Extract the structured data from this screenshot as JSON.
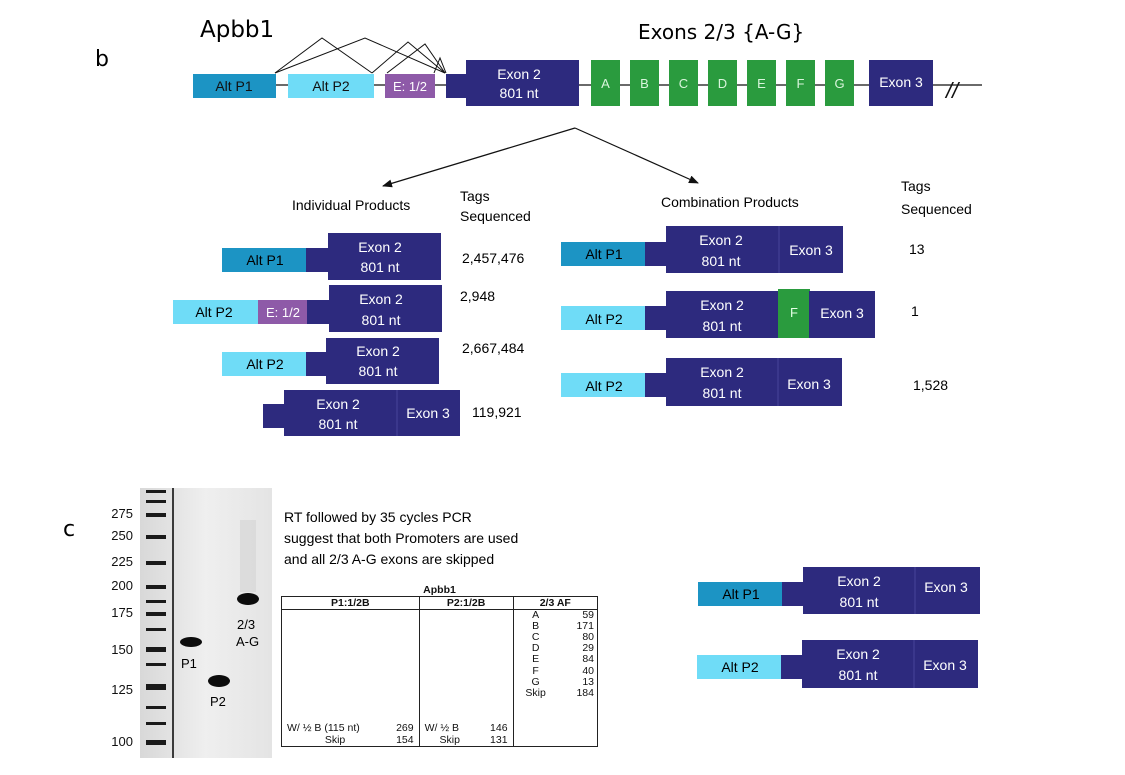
{
  "gene_name": "Apbb1",
  "panel_b": "b",
  "panel_c": "c",
  "exons_title": "Exons 2/3 {A-G}",
  "colors": {
    "alt_p1": "#1c94c4",
    "alt_p2": "#6fdcf7",
    "exon_half": "#8e5aa8",
    "exon_main": "#2d2a7e",
    "exon_af": "#2a9b3e"
  },
  "gene_model": {
    "alt_p1": "Alt P1",
    "alt_p2": "Alt P2",
    "e_half": "E: 1/2",
    "exon2_line1": "Exon 2",
    "exon2_line2": "801 nt",
    "af_exons": [
      "A",
      "B",
      "C",
      "D",
      "E",
      "F",
      "G"
    ],
    "exon3": "Exon 3",
    "break_mark": "//"
  },
  "individual": {
    "heading": "Individual Products",
    "tags_line1": "Tags",
    "tags_line2": "Sequenced",
    "products": [
      {
        "left1": "Alt P1",
        "exon2_l1": "Exon 2",
        "exon2_l2": "801 nt",
        "count": "2,457,476"
      },
      {
        "left1": "Alt P2",
        "left2": "E: 1/2",
        "exon2_l1": "Exon 2",
        "exon2_l2": "801 nt",
        "count": "2,948"
      },
      {
        "left1": "Alt P2",
        "exon2_l1": "Exon 2",
        "exon2_l2": "801 nt",
        "count": "2,667,484"
      },
      {
        "exon2_l1": "Exon 2",
        "exon2_l2": "801 nt",
        "exon3": "Exon 3",
        "count": "119,921"
      }
    ]
  },
  "combination": {
    "heading": "Combination Products",
    "tags_line1": "Tags",
    "tags_line2": "Sequenced",
    "products": [
      {
        "left": "Alt P1",
        "exon2_l1": "Exon 2",
        "exon2_l2": "801 nt",
        "exon3": "Exon 3",
        "count": "13"
      },
      {
        "left": "Alt P2",
        "exon2_l1": "Exon 2",
        "exon2_l2": "801 nt",
        "mid": "F",
        "exon3": "Exon 3",
        "count": "1"
      },
      {
        "left": "Alt P2",
        "exon2_l1": "Exon 2",
        "exon2_l2": "801 nt",
        "exon3": "Exon 3",
        "count": "1,528"
      }
    ]
  },
  "gel": {
    "ladder": [
      "275",
      "250",
      "225",
      "200",
      "175",
      "150",
      "125",
      "100"
    ],
    "lane_p1": "P1",
    "lane_p2": "P2",
    "lane_af_l1": "2/3",
    "lane_af_l2": "A-G"
  },
  "note": {
    "line1": "RT followed by 35 cycles PCR",
    "line2": "suggest that both Promoters are used",
    "line3": "and all 2/3 A-G exons are skipped"
  },
  "table": {
    "title": "Apbb1",
    "headers": [
      "P1:1/2B",
      "P2:1/2B",
      "2/3 AF"
    ],
    "p1": [
      {
        "label": "W/ ½ B (115 nt)",
        "value": "269"
      },
      {
        "label": "Skip",
        "value": "154"
      }
    ],
    "p2": [
      {
        "label": "W/ ½ B",
        "value": "146"
      },
      {
        "label": "Skip",
        "value": "131"
      }
    ],
    "af": [
      {
        "label": "A",
        "value": "59"
      },
      {
        "label": "B",
        "value": "171"
      },
      {
        "label": "C",
        "value": "80"
      },
      {
        "label": "D",
        "value": "29"
      },
      {
        "label": "E",
        "value": "84"
      },
      {
        "label": "F",
        "value": "40"
      },
      {
        "label": "G",
        "value": "13"
      },
      {
        "label": "Skip",
        "value": "184"
      }
    ]
  },
  "gel_products": [
    {
      "left": "Alt P1",
      "exon2_l1": "Exon 2",
      "exon2_l2": "801 nt",
      "exon3": "Exon 3"
    },
    {
      "left": "Alt P2",
      "exon2_l1": "Exon 2",
      "exon2_l2": "801 nt",
      "exon3": "Exon 3"
    }
  ]
}
